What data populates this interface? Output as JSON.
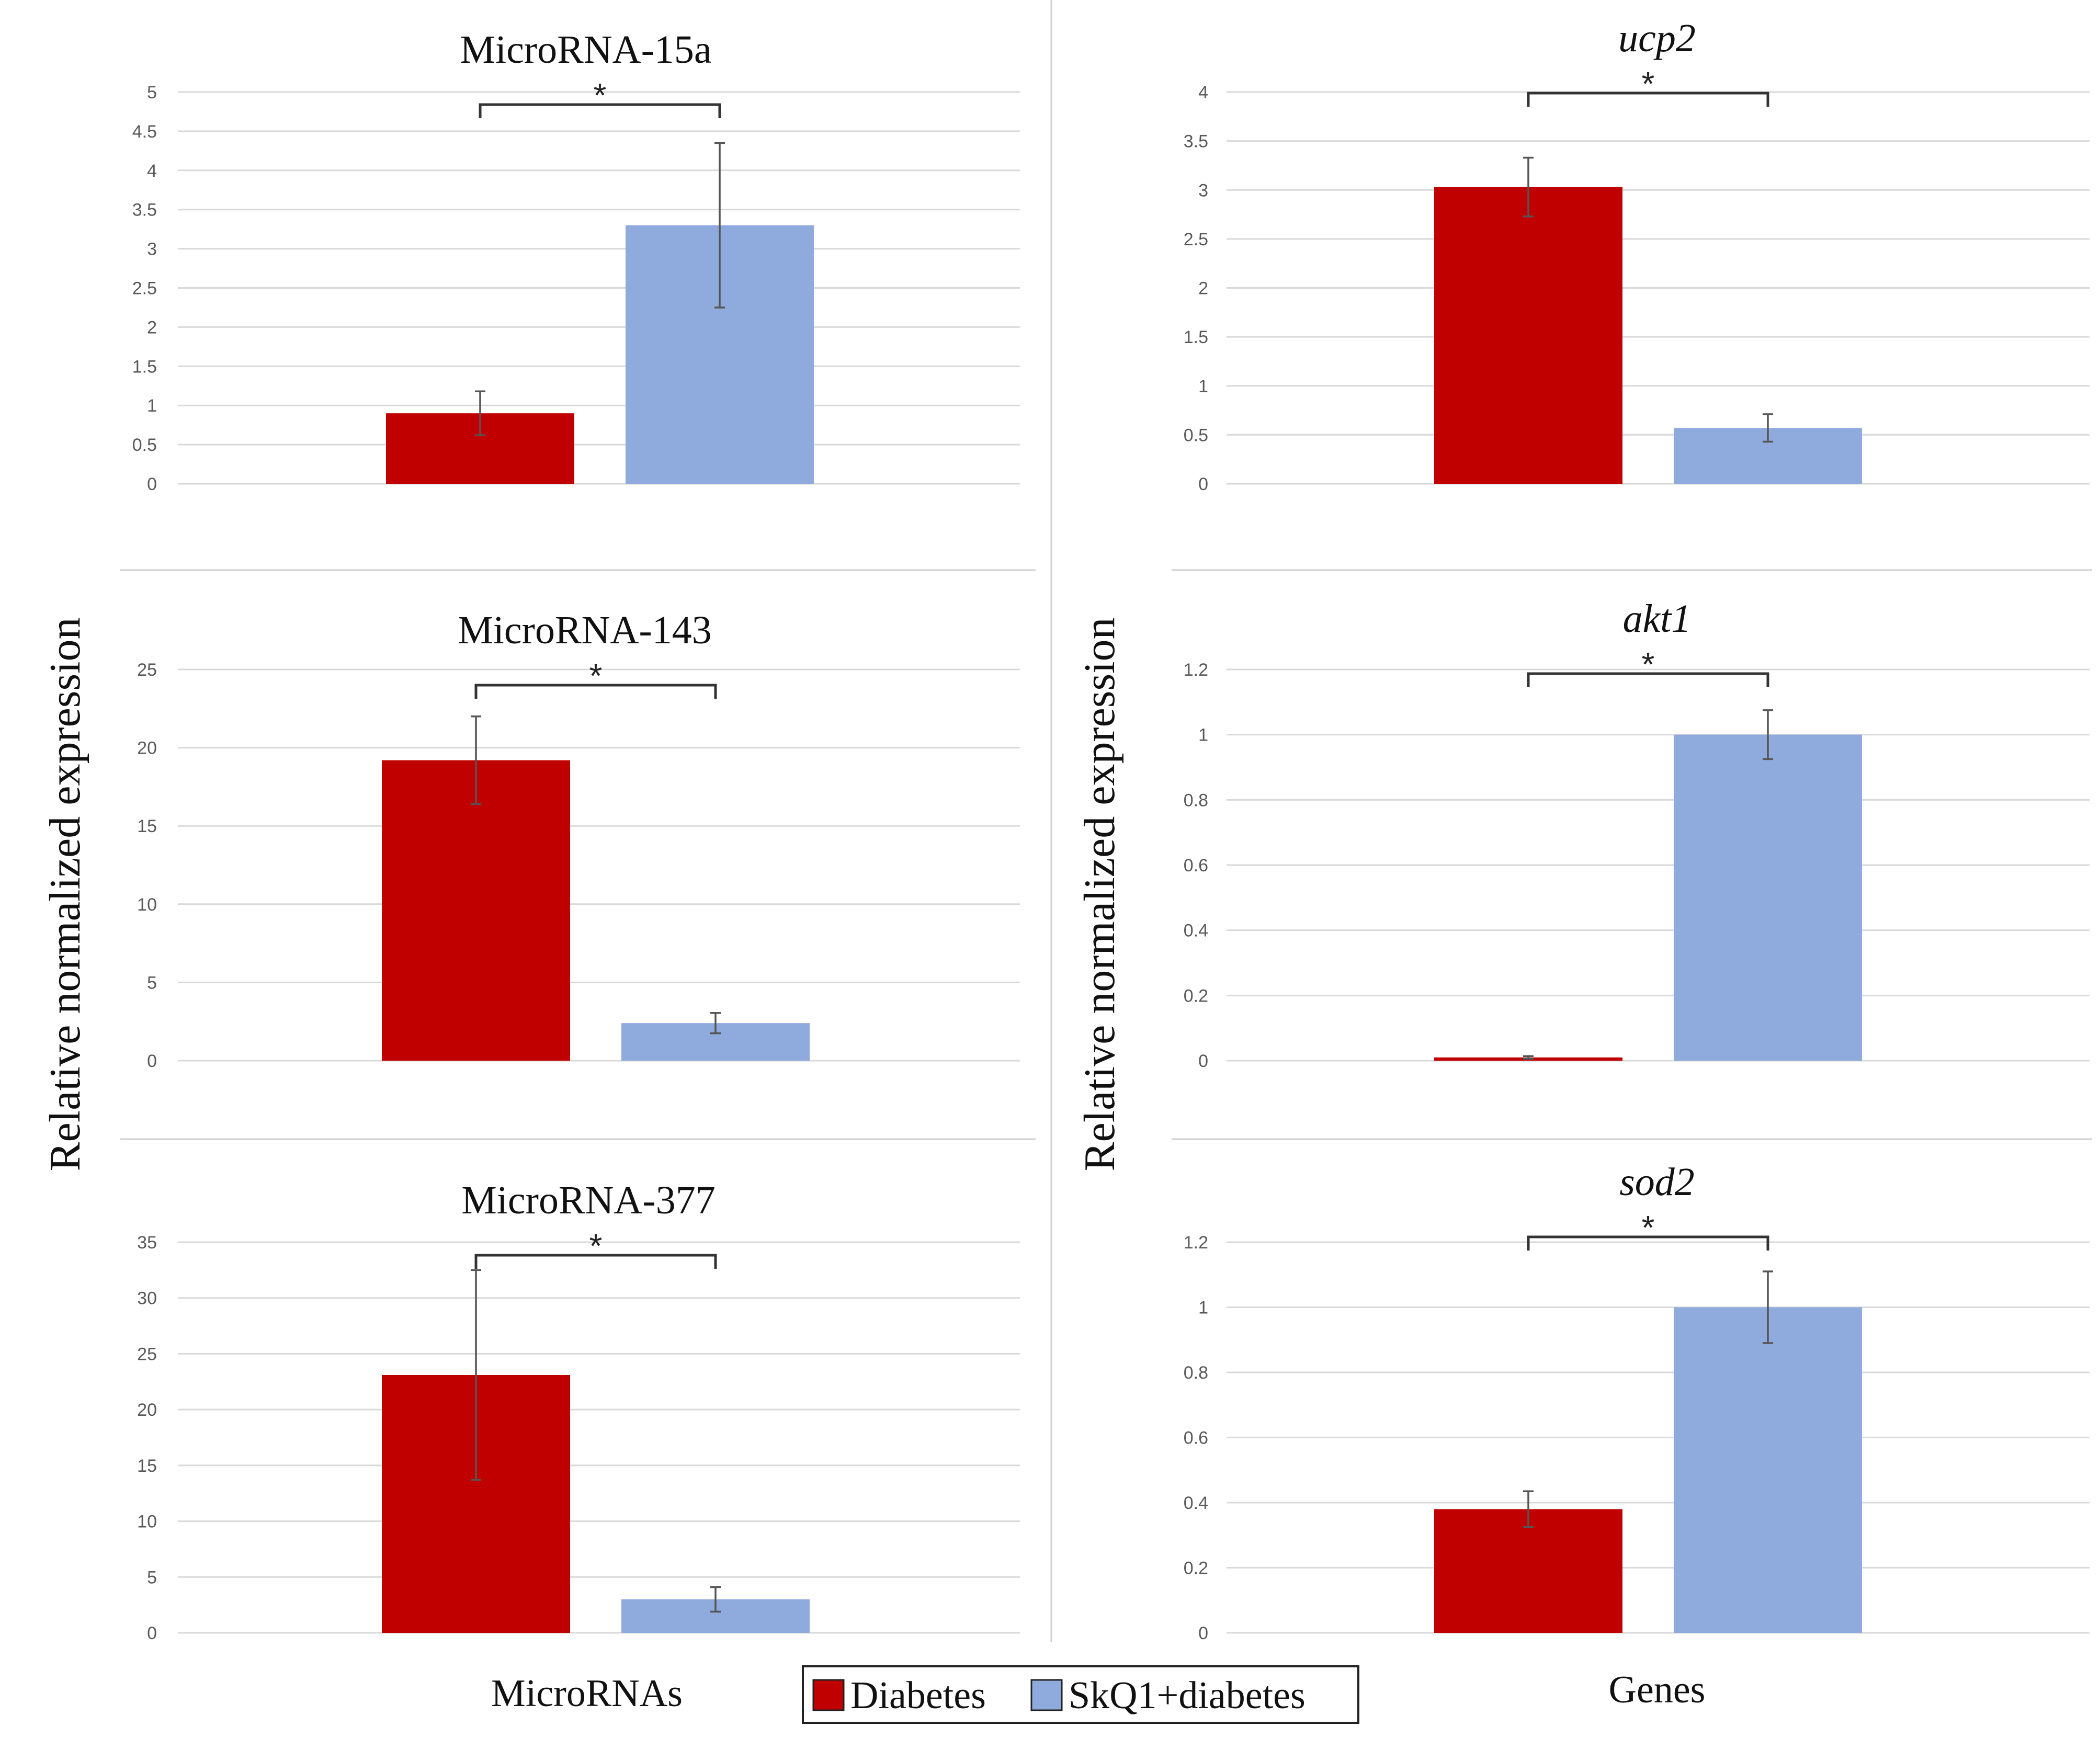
{
  "colors": {
    "diabetes": "#c00000",
    "skq1_diabetes": "#8faadc"
  },
  "y_axis_label": "Relative normalized expression",
  "x_groups": {
    "left": "MicroRNAs",
    "right": "Genes"
  },
  "legend": {
    "items": [
      "Diabetes",
      "SkQ1+diabetes"
    ]
  },
  "chart_data": [
    {
      "type": "bar",
      "title": "MicroRNA-15a",
      "title_italic": false,
      "series": [
        {
          "name": "Diabetes",
          "value": 0.9,
          "error": 0.28
        },
        {
          "name": "SkQ1+diabetes",
          "value": 3.3,
          "error": 1.05
        }
      ],
      "ylim": [
        0,
        5
      ],
      "yticks": [
        "0",
        "0.5",
        "1",
        "1.5",
        "2",
        "2.5",
        "3",
        "3.5",
        "4",
        "4.5",
        "5"
      ],
      "significance": "*"
    },
    {
      "type": "bar",
      "title": "ucp2",
      "title_italic": true,
      "series": [
        {
          "name": "Diabetes",
          "value": 3.03,
          "error": 0.3
        },
        {
          "name": "SkQ1+diabetes",
          "value": 0.57,
          "error": 0.14
        }
      ],
      "ylim": [
        0,
        4
      ],
      "yticks": [
        "0",
        "0.5",
        "1",
        "1.5",
        "2",
        "2.5",
        "3",
        "3.5",
        "4"
      ],
      "significance": "*"
    },
    {
      "type": "bar",
      "title": "MicroRNA-143",
      "title_italic": false,
      "series": [
        {
          "name": "Diabetes",
          "value": 19.2,
          "error": 2.8
        },
        {
          "name": "SkQ1+diabetes",
          "value": 2.4,
          "error": 0.65
        }
      ],
      "ylim": [
        0,
        25
      ],
      "yticks": [
        "0",
        "5",
        "10",
        "15",
        "20",
        "25"
      ],
      "significance": "*"
    },
    {
      "type": "bar",
      "title": "akt1",
      "title_italic": true,
      "series": [
        {
          "name": "Diabetes",
          "value": 0.01,
          "error": 0.004
        },
        {
          "name": "SkQ1+diabetes",
          "value": 1.0,
          "error": 0.075
        }
      ],
      "ylim": [
        0,
        1.2
      ],
      "yticks": [
        "0",
        "0.2",
        "0.4",
        "0.6",
        "0.8",
        "1",
        "1.2"
      ],
      "significance": "*"
    },
    {
      "type": "bar",
      "title": "MicroRNA-377",
      "title_italic": false,
      "series": [
        {
          "name": "Diabetes",
          "value": 23.1,
          "error": 9.4
        },
        {
          "name": "SkQ1+diabetes",
          "value": 3.0,
          "error": 1.1
        }
      ],
      "ylim": [
        0,
        35
      ],
      "yticks": [
        "0",
        "5",
        "10",
        "15",
        "20",
        "25",
        "30",
        "35"
      ],
      "significance": "*"
    },
    {
      "type": "bar",
      "title": "sod2",
      "title_italic": true,
      "series": [
        {
          "name": "Diabetes",
          "value": 0.38,
          "error": 0.055
        },
        {
          "name": "SkQ1+diabetes",
          "value": 1.0,
          "error": 0.11
        }
      ],
      "ylim": [
        0,
        1.2
      ],
      "yticks": [
        "0",
        "0.2",
        "0.4",
        "0.6",
        "0.8",
        "1",
        "1.2"
      ],
      "significance": "*"
    }
  ]
}
